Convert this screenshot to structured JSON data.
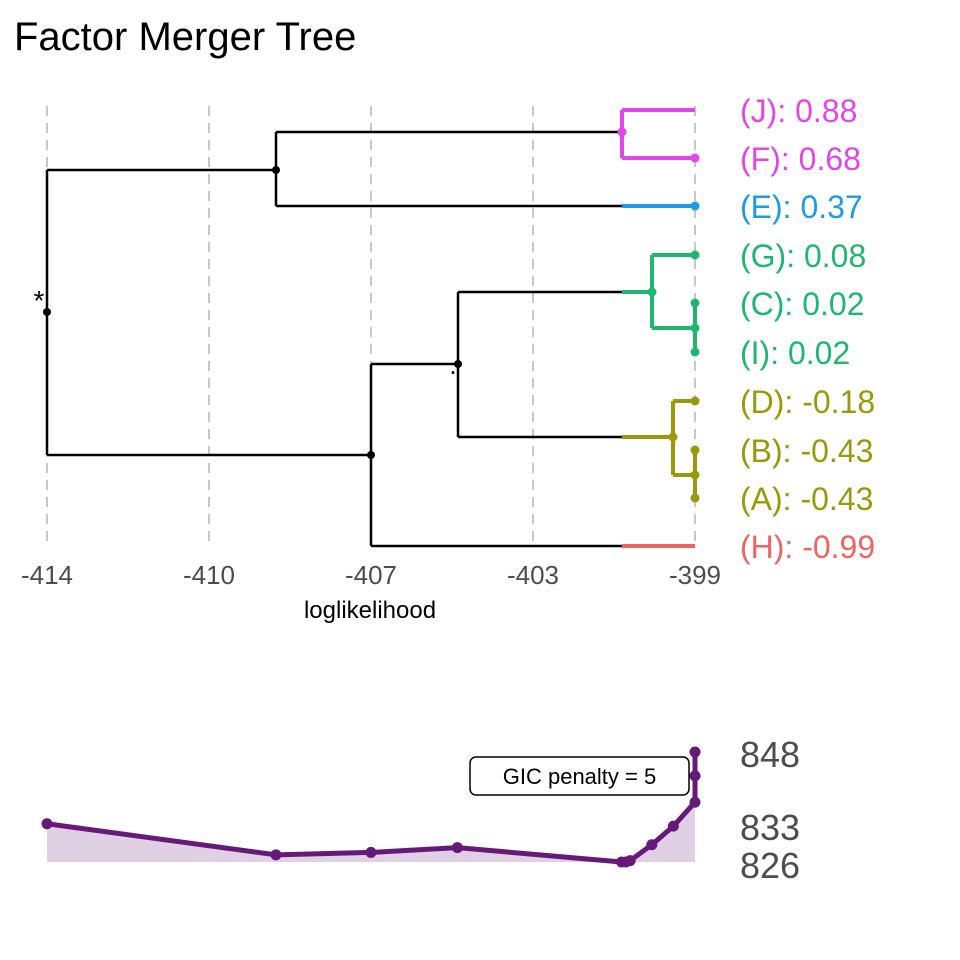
{
  "chart_data": [
    {
      "type": "dendrogram",
      "title": "Factor Merger Tree",
      "xlabel": "loglikelihood",
      "xlim": [
        -414,
        -399
      ],
      "x_ticks": [
        {
          "value": -414,
          "label": "-414"
        },
        {
          "value": -410.25,
          "label": "-410"
        },
        {
          "value": -406.5,
          "label": "-407"
        },
        {
          "value": -402.75,
          "label": "-403"
        },
        {
          "value": -399,
          "label": "-399"
        }
      ],
      "grid": "vertical dashed",
      "colors": {
        "magenta": "#e046e9",
        "blue": "#1e9be4",
        "green": "#1fb670",
        "olive": "#999909",
        "red": "#ef6461",
        "black": "#000000",
        "grid": "#c8c8c8"
      },
      "leaves": [
        {
          "label": "(J): 0.88",
          "color": "#e046e9"
        },
        {
          "label": "(F): 0.68",
          "color": "#e046e9"
        },
        {
          "label": "(E): 0.37",
          "color": "#1e9be4"
        },
        {
          "label": "(G): 0.08",
          "color": "#1fb670"
        },
        {
          "label": "(C): 0.02",
          "color": "#1fb670"
        },
        {
          "label": "(I): 0.02",
          "color": "#1fb670"
        },
        {
          "label": "(D): -0.18",
          "color": "#999909"
        },
        {
          "label": "(B): -0.43",
          "color": "#999909"
        },
        {
          "label": "(A): -0.43",
          "color": "#999909"
        },
        {
          "label": "(H): -0.99",
          "color": "#ef6461"
        }
      ],
      "annotations": [
        {
          "text": "*",
          "node": "root"
        },
        {
          "text": ".",
          "node": "G-D-cluster"
        }
      ]
    },
    {
      "type": "area",
      "x_loglikelihood": [
        -414,
        -408.7,
        -406.5,
        -404.5,
        -400.7,
        -400.6,
        -400.5,
        -400,
        -399.5,
        -399,
        -399,
        -399
      ],
      "gic": [
        834,
        827.5,
        828,
        829,
        826,
        826,
        826.3,
        829.6,
        833.5,
        838.5,
        844,
        849
      ],
      "y_labels": [
        "848",
        "833",
        "826"
      ],
      "box_label": "GIC penalty = 5",
      "line_color": "#67197a",
      "fill_color": "#dfd0e3"
    }
  ]
}
